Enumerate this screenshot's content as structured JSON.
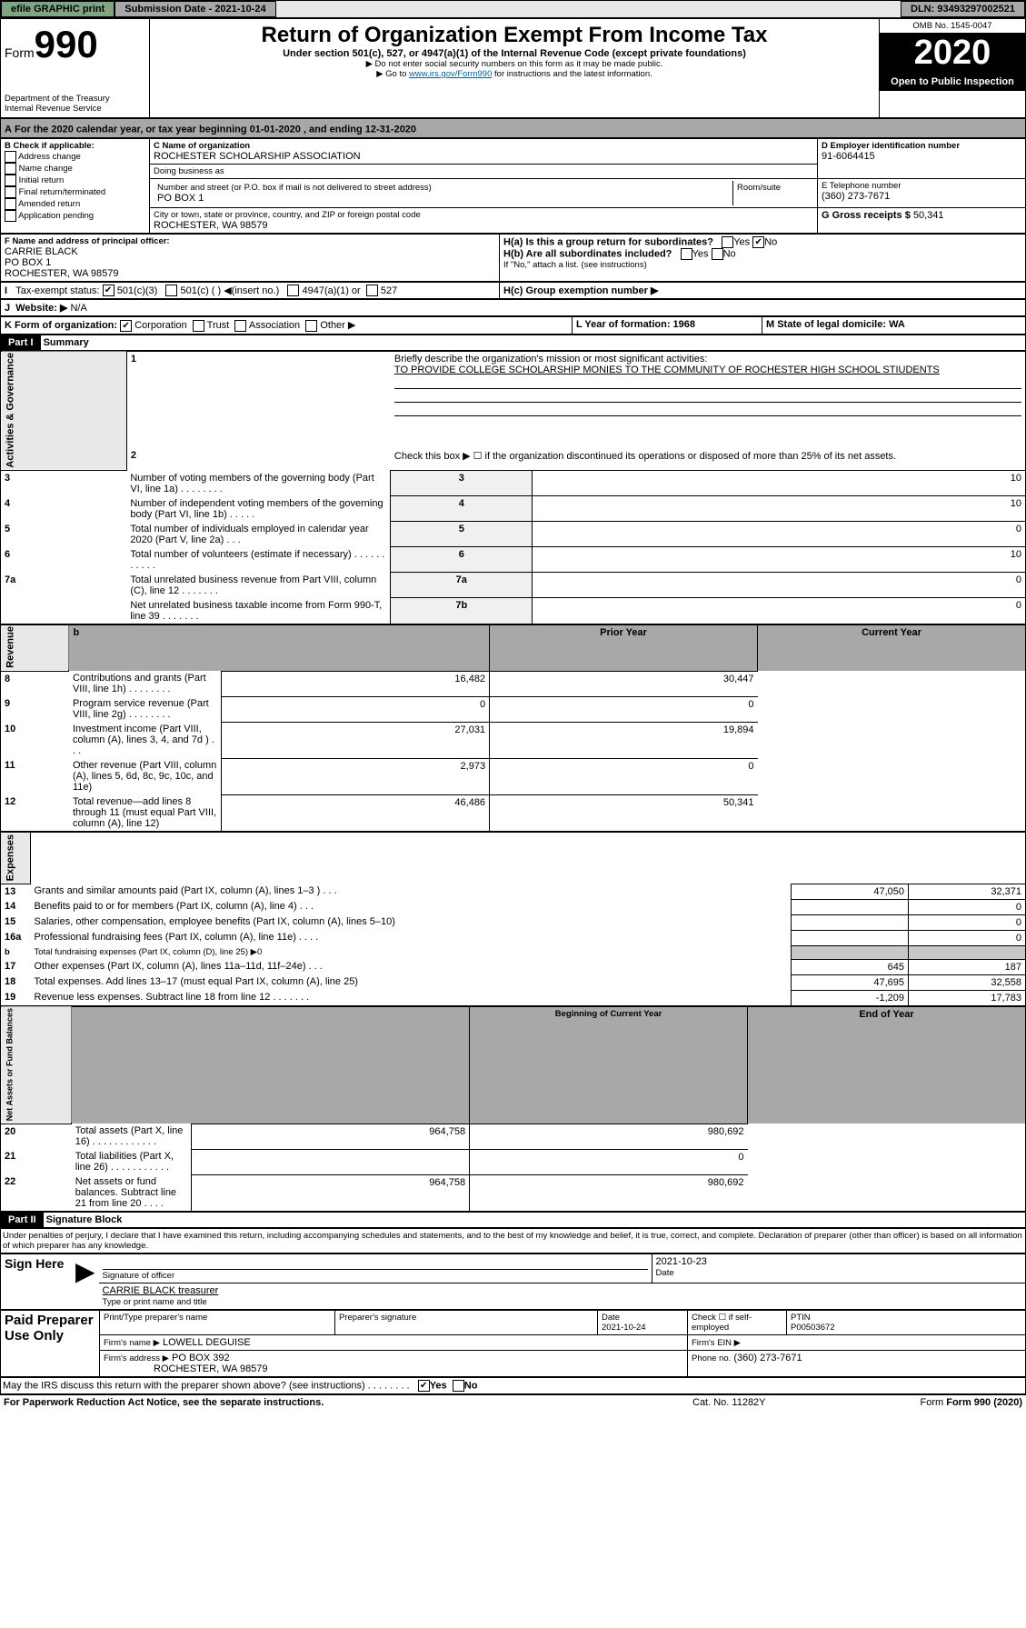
{
  "topbar": {
    "efile": "efile GRAPHIC print",
    "subdate_label": "Submission Date - 2021-10-24",
    "dln": "DLN: 93493297002521"
  },
  "header": {
    "form_label": "Form",
    "form_no": "990",
    "omb": "OMB No. 1545-0047",
    "title": "Return of Organization Exempt From Income Tax",
    "subtitle": "Under section 501(c), 527, or 4947(a)(1) of the Internal Revenue Code (except private foundations)",
    "note1": "▶ Do not enter social security numbers on this form as it may be made public.",
    "note2": "▶ Go to ",
    "link": "www.irs.gov/Form990",
    "note2b": " for instructions and the latest information.",
    "dept": "Department of the Treasury",
    "irs": "Internal Revenue Service",
    "year": "2020",
    "openpub": "Open to Public Inspection"
  },
  "a_line": {
    "text": "For the 2020 calendar year, or tax year beginning 01-01-2020    , and ending 12-31-2020"
  },
  "boxB": {
    "label": "B Check if applicable:",
    "items": [
      "Address change",
      "Name change",
      "Initial return",
      "Final return/terminated",
      "Amended return",
      "Application pending"
    ]
  },
  "boxC": {
    "label": "C Name of organization",
    "org": "ROCHESTER SCHOLARSHIP ASSOCIATION",
    "dba_label": "Doing business as",
    "dba": "",
    "addr_label": "Number and street (or P.O. box if mail is not delivered to street address)",
    "room": "Room/suite",
    "addr": "PO BOX 1",
    "city_label": "City or town, state or province, country, and ZIP or foreign postal code",
    "city": "ROCHESTER, WA  98579"
  },
  "boxD": {
    "label": "D Employer identification number",
    "ein": "91-6064415"
  },
  "boxE": {
    "label": "E Telephone number",
    "tel": "(360) 273-7671"
  },
  "boxG": {
    "label": "G Gross receipts $",
    "val": "50,341"
  },
  "boxF": {
    "label": "F  Name and address of principal officer:",
    "name": "CARRIE BLACK",
    "addr": "PO BOX 1",
    "city": "ROCHESTER, WA  98579"
  },
  "boxH": {
    "ha": "H(a)  Is this a group return for subordinates?",
    "hb": "H(b)  Are all subordinates included?",
    "hb2": "If \"No,\" attach a list. (see instructions)",
    "hc": "H(c)  Group exemption number ▶",
    "yes": "Yes",
    "no": "No"
  },
  "boxI": {
    "label": "Tax-exempt status:",
    "opts": [
      "501(c)(3)",
      "501(c) (  ) ◀(insert no.)",
      "4947(a)(1) or",
      "527"
    ]
  },
  "boxJ": {
    "label": "Website: ▶",
    "val": "N/A"
  },
  "boxK": {
    "label": "K Form of organization:",
    "opts": [
      "Corporation",
      "Trust",
      "Association",
      "Other ▶"
    ]
  },
  "boxL": {
    "label": "L Year of formation: 1968"
  },
  "boxM": {
    "label": "M State of legal domicile: WA"
  },
  "part1": {
    "hdr": "Part I",
    "title": "Summary",
    "l1": "Briefly describe the organization's mission or most significant activities:",
    "l1v": "TO PROVIDE COLLEGE SCHOLARSHIP MONIES TO THE COMMUNITY OF ROCHESTER HIGH SCHOOL STIUDENTS",
    "l2": "Check this box ▶ ☐  if the organization discontinued its operations or disposed of more than 25% of its net assets.",
    "rows_gov": [
      {
        "n": "3",
        "t": "Number of voting members of the governing body (Part VI, line 1a)  .    .    .    .    .    .    .    .",
        "idx": "3",
        "v": "10"
      },
      {
        "n": "4",
        "t": "Number of independent voting members of the governing body (Part VI, line 1b)  .    .    .    .    .",
        "idx": "4",
        "v": "10"
      },
      {
        "n": "5",
        "t": "Total number of individuals employed in calendar year 2020 (Part V, line 2a)  .    .    .",
        "idx": "5",
        "v": "0"
      },
      {
        "n": "6",
        "t": "Total number of volunteers (estimate if necessary)  .    .    .    .    .    .    .    .    .    .    .",
        "idx": "6",
        "v": "10"
      },
      {
        "n": "7a",
        "t": "Total unrelated business revenue from Part VIII, column (C), line 12  .    .    .    .    .    .    .",
        "idx": "7a",
        "v": "0"
      },
      {
        "n": "",
        "t": "Net unrelated business taxable income from Form 990-T, line 39  .    .    .    .    .    .    .",
        "idx": "7b",
        "v": "0"
      }
    ],
    "hdr2": {
      "b": "b",
      "py": "Prior Year",
      "cy": "Current Year"
    },
    "rows_rev": [
      {
        "n": "8",
        "t": "Contributions and grants (Part VIII, line 1h)  .    .    .    .    .    .    .    .",
        "py": "16,482",
        "cy": "30,447"
      },
      {
        "n": "9",
        "t": "Program service revenue (Part VIII, line 2g)  .    .    .    .    .    .    .    .",
        "py": "0",
        "cy": "0"
      },
      {
        "n": "10",
        "t": "Investment income (Part VIII, column (A), lines 3, 4, and 7d )  .    .    .",
        "py": "27,031",
        "cy": "19,894"
      },
      {
        "n": "11",
        "t": "Other revenue (Part VIII, column (A), lines 5, 6d, 8c, 9c, 10c, and 11e)",
        "py": "2,973",
        "cy": "0"
      },
      {
        "n": "12",
        "t": "Total revenue—add lines 8 through 11 (must equal Part VIII, column (A), line 12)",
        "py": "46,486",
        "cy": "50,341"
      }
    ],
    "rows_exp": [
      {
        "n": "13",
        "t": "Grants and similar amounts paid (Part IX, column (A), lines 1–3 )  .    .    .",
        "py": "47,050",
        "cy": "32,371"
      },
      {
        "n": "14",
        "t": "Benefits paid to or for members (Part IX, column (A), line 4)  .    .    .",
        "py": "",
        "cy": "0"
      },
      {
        "n": "15",
        "t": "Salaries, other compensation, employee benefits (Part IX, column (A), lines 5–10)",
        "py": "",
        "cy": "0"
      },
      {
        "n": "16a",
        "t": "Professional fundraising fees (Part IX, column (A), line 11e)  .    .    .    .",
        "py": "",
        "cy": "0"
      },
      {
        "n": "b",
        "t": "Total fundraising expenses (Part IX, column (D), line 25) ▶0",
        "py": "",
        "cy": "",
        "shade": true,
        "small": true
      },
      {
        "n": "17",
        "t": "Other expenses (Part IX, column (A), lines 11a–11d, 11f–24e)  .    .    .",
        "py": "645",
        "cy": "187"
      },
      {
        "n": "18",
        "t": "Total expenses. Add lines 13–17 (must equal Part IX, column (A), line 25)",
        "py": "47,695",
        "cy": "32,558"
      },
      {
        "n": "19",
        "t": "Revenue less expenses. Subtract line 18 from line 12  .    .    .    .    .    .    .",
        "py": "-1,209",
        "cy": "17,783"
      }
    ],
    "hdr3": {
      "py": "Beginning of Current Year",
      "cy": "End of Year"
    },
    "rows_net": [
      {
        "n": "20",
        "t": "Total assets (Part X, line 16)  .    .    .    .    .    .    .    .    .    .    .    .",
        "py": "964,758",
        "cy": "980,692"
      },
      {
        "n": "21",
        "t": "Total liabilities (Part X, line 26)  .    .    .    .    .    .    .    .    .    .    .",
        "py": "",
        "cy": "0"
      },
      {
        "n": "22",
        "t": "Net assets or fund balances. Subtract line 21 from line 20  .    .    .    .",
        "py": "964,758",
        "cy": "980,692"
      }
    ]
  },
  "part2": {
    "hdr": "Part II",
    "title": "Signature Block",
    "perjury": "Under penalties of perjury, I declare that I have examined this return, including accompanying schedules and statements, and to the best of my knowledge and belief, it is true, correct, and complete. Declaration of preparer (other than officer) is based on all information of which preparer has any knowledge.",
    "sign": "Sign Here",
    "sigoff": "Signature of officer",
    "date": "2021-10-23",
    "datelbl": "Date",
    "typed": "CARRIE BLACK treasurer",
    "typedlbl": "Type or print name and title",
    "paid": "Paid Preparer Use Only",
    "pcols": [
      "Print/Type preparer's name",
      "Preparer's signature",
      "Date",
      "Check ☐ if self-employed",
      "PTIN"
    ],
    "pdate": "2021-10-24",
    "ptin": "P00503672",
    "firmname_lbl": "Firm's name      ▶",
    "firmname": "LOWELL DEGUISE",
    "firmein_lbl": "Firm's EIN ▶",
    "firmein": "",
    "firmaddr_lbl": "Firm's address ▶",
    "firmaddr": "PO BOX 392",
    "firmcity": "ROCHESTER, WA  98579",
    "phone_lbl": "Phone no.",
    "phone": "(360) 273-7671",
    "discuss": "May the IRS discuss this return with the preparer shown above? (see instructions)  .    .    .    .    .    .    .    .",
    "yes": "Yes",
    "no": "No"
  },
  "footer": {
    "pra": "For Paperwork Reduction Act Notice, see the separate instructions.",
    "cat": "Cat. No. 11282Y",
    "form": "Form 990 (2020)"
  }
}
